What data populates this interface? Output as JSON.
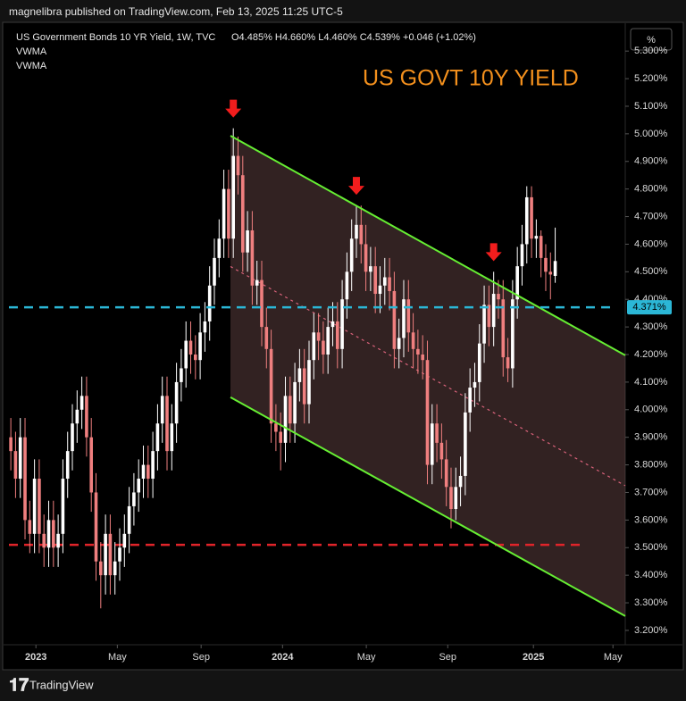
{
  "header": {
    "publisher": "magnelibra published on TradingView.com, Feb 13, 2025 11:25 UTC-5",
    "symbol": "US Government Bonds 10 YR Yield, 1W, TVC",
    "ohlc_text": "O4.485% H4.660% L4.460% C4.539% +0.046 (+1.02%)",
    "indicators": [
      "VWMA",
      "VWMA"
    ],
    "scale_button": "%"
  },
  "footer": {
    "brand": "TradingView"
  },
  "chart_data": {
    "type": "candlestick",
    "title": "US GOVT 10Y YIELD",
    "up_color": "#ffffff",
    "down_color": "#ef7f7f",
    "xlim": [
      -0.4,
      129.8
    ],
    "xticks": [
      {
        "value": 5.3,
        "label": "2023"
      },
      {
        "value": 22.5,
        "label": "May"
      },
      {
        "value": 40.2,
        "label": "Sep"
      },
      {
        "value": 57.4,
        "label": "2024"
      },
      {
        "value": 75.1,
        "label": "May"
      },
      {
        "value": 92.3,
        "label": "Sep"
      },
      {
        "value": 110.4,
        "label": "2025"
      },
      {
        "value": 127.2,
        "label": "May"
      }
    ],
    "ylim": [
      3.148,
      5.388
    ],
    "yticks": [
      {
        "value": 3.2,
        "label": "3.200%"
      },
      {
        "value": 3.3,
        "label": "3.300%"
      },
      {
        "value": 3.4,
        "label": "3.400%"
      },
      {
        "value": 3.5,
        "label": "3.500%"
      },
      {
        "value": 3.6,
        "label": "3.600%"
      },
      {
        "value": 3.7,
        "label": "3.700%"
      },
      {
        "value": 3.8,
        "label": "3.800%"
      },
      {
        "value": 3.9,
        "label": "3.900%"
      },
      {
        "value": 4.0,
        "label": "4.000%"
      },
      {
        "value": 4.1,
        "label": "4.100%"
      },
      {
        "value": 4.2,
        "label": "4.200%"
      },
      {
        "value": 4.3,
        "label": "4.300%"
      },
      {
        "value": 4.4,
        "label": "4.400%"
      },
      {
        "value": 4.5,
        "label": "4.500%"
      },
      {
        "value": 4.6,
        "label": "4.600%"
      },
      {
        "value": 4.7,
        "label": "4.700%"
      },
      {
        "value": 4.8,
        "label": "4.800%"
      },
      {
        "value": 4.9,
        "label": "4.900%"
      },
      {
        "value": 5.0,
        "label": "5.000%"
      },
      {
        "value": 5.1,
        "label": "5.100%"
      },
      {
        "value": 5.2,
        "label": "5.200%"
      },
      {
        "value": 5.3,
        "label": "5.300%"
      }
    ],
    "ohlc": [
      [
        3.9,
        3.97,
        3.78,
        3.85
      ],
      [
        3.85,
        3.92,
        3.68,
        3.75
      ],
      [
        3.75,
        3.97,
        3.68,
        3.9
      ],
      [
        3.9,
        3.97,
        3.53,
        3.6
      ],
      [
        3.6,
        3.67,
        3.48,
        3.55
      ],
      [
        3.55,
        3.82,
        3.48,
        3.75
      ],
      [
        3.75,
        3.82,
        3.48,
        3.55
      ],
      [
        3.55,
        3.62,
        3.43,
        3.5
      ],
      [
        3.5,
        3.67,
        3.43,
        3.6
      ],
      [
        3.6,
        3.67,
        3.43,
        3.5
      ],
      [
        3.5,
        3.62,
        3.43,
        3.55
      ],
      [
        3.55,
        3.82,
        3.48,
        3.75
      ],
      [
        3.75,
        3.92,
        3.68,
        3.85
      ],
      [
        3.85,
        4.02,
        3.78,
        3.95
      ],
      [
        3.95,
        4.07,
        3.88,
        4.0
      ],
      [
        4.0,
        4.12,
        3.93,
        4.05
      ],
      [
        4.05,
        4.12,
        3.83,
        3.9
      ],
      [
        3.9,
        3.97,
        3.63,
        3.7
      ],
      [
        3.7,
        3.77,
        3.38,
        3.45
      ],
      [
        3.45,
        3.52,
        3.28,
        3.4
      ],
      [
        3.4,
        3.62,
        3.33,
        3.55
      ],
      [
        3.55,
        3.62,
        3.33,
        3.4
      ],
      [
        3.4,
        3.52,
        3.33,
        3.45
      ],
      [
        3.45,
        3.57,
        3.38,
        3.5
      ],
      [
        3.5,
        3.62,
        3.43,
        3.55
      ],
      [
        3.55,
        3.72,
        3.48,
        3.65
      ],
      [
        3.65,
        3.77,
        3.58,
        3.7
      ],
      [
        3.7,
        3.82,
        3.63,
        3.75
      ],
      [
        3.75,
        3.87,
        3.68,
        3.8
      ],
      [
        3.8,
        3.87,
        3.68,
        3.75
      ],
      [
        3.75,
        3.92,
        3.68,
        3.85
      ],
      [
        3.85,
        4.02,
        3.78,
        3.95
      ],
      [
        3.95,
        4.12,
        3.88,
        4.05
      ],
      [
        4.05,
        4.12,
        3.78,
        3.85
      ],
      [
        3.85,
        4.02,
        3.78,
        3.95
      ],
      [
        3.95,
        4.17,
        3.88,
        4.1
      ],
      [
        4.1,
        4.22,
        4.03,
        4.15
      ],
      [
        4.15,
        4.32,
        4.08,
        4.25
      ],
      [
        4.25,
        4.32,
        4.13,
        4.2
      ],
      [
        4.2,
        4.27,
        4.11,
        4.18
      ],
      [
        4.18,
        4.35,
        4.11,
        4.28
      ],
      [
        4.28,
        4.39,
        4.21,
        4.32
      ],
      [
        4.32,
        4.52,
        4.25,
        4.45
      ],
      [
        4.45,
        4.62,
        4.38,
        4.55
      ],
      [
        4.55,
        4.69,
        4.48,
        4.62
      ],
      [
        4.62,
        4.87,
        4.55,
        4.8
      ],
      [
        4.8,
        4.87,
        4.55,
        4.62
      ],
      [
        4.62,
        5.02,
        4.55,
        4.92
      ],
      [
        4.92,
        4.99,
        4.78,
        4.85
      ],
      [
        4.85,
        4.92,
        4.5,
        4.57
      ],
      [
        4.57,
        4.72,
        4.5,
        4.65
      ],
      [
        4.65,
        4.72,
        4.38,
        4.45
      ],
      [
        4.45,
        4.54,
        4.38,
        4.47
      ],
      [
        4.47,
        4.54,
        4.23,
        4.3
      ],
      [
        4.3,
        4.37,
        4.15,
        4.22
      ],
      [
        4.22,
        4.29,
        3.88,
        3.95
      ],
      [
        3.95,
        4.02,
        3.85,
        3.92
      ],
      [
        3.92,
        3.99,
        3.78,
        3.88
      ],
      [
        3.88,
        4.12,
        3.81,
        4.05
      ],
      [
        4.05,
        4.12,
        3.88,
        3.95
      ],
      [
        3.95,
        4.17,
        3.88,
        4.1
      ],
      [
        4.1,
        4.22,
        4.03,
        4.15
      ],
      [
        4.15,
        4.22,
        3.95,
        4.02
      ],
      [
        4.02,
        4.25,
        3.95,
        4.18
      ],
      [
        4.18,
        4.35,
        4.11,
        4.28
      ],
      [
        4.28,
        4.35,
        4.18,
        4.25
      ],
      [
        4.25,
        4.32,
        4.13,
        4.2
      ],
      [
        4.2,
        4.37,
        4.13,
        4.3
      ],
      [
        4.3,
        4.39,
        4.23,
        4.32
      ],
      [
        4.32,
        4.39,
        4.15,
        4.22
      ],
      [
        4.22,
        4.47,
        4.15,
        4.4
      ],
      [
        4.4,
        4.57,
        4.33,
        4.5
      ],
      [
        4.5,
        4.69,
        4.43,
        4.62
      ],
      [
        4.62,
        4.74,
        4.55,
        4.67
      ],
      [
        4.67,
        4.74,
        4.53,
        4.6
      ],
      [
        4.6,
        4.67,
        4.43,
        4.5
      ],
      [
        4.5,
        4.59,
        4.43,
        4.52
      ],
      [
        4.52,
        4.59,
        4.35,
        4.42
      ],
      [
        4.42,
        4.52,
        4.35,
        4.45
      ],
      [
        4.45,
        4.55,
        4.38,
        4.48
      ],
      [
        4.48,
        4.55,
        4.36,
        4.43
      ],
      [
        4.43,
        4.5,
        4.15,
        4.22
      ],
      [
        4.22,
        4.33,
        4.15,
        4.26
      ],
      [
        4.26,
        4.47,
        4.19,
        4.4
      ],
      [
        4.4,
        4.47,
        4.21,
        4.28
      ],
      [
        4.28,
        4.35,
        4.15,
        4.22
      ],
      [
        4.22,
        4.29,
        4.13,
        4.2
      ],
      [
        4.2,
        4.27,
        4.11,
        4.18
      ],
      [
        4.18,
        4.25,
        3.73,
        3.8
      ],
      [
        3.8,
        4.02,
        3.73,
        3.95
      ],
      [
        3.95,
        4.02,
        3.81,
        3.88
      ],
      [
        3.88,
        3.95,
        3.75,
        3.82
      ],
      [
        3.82,
        3.89,
        3.65,
        3.72
      ],
      [
        3.72,
        3.79,
        3.57,
        3.64
      ],
      [
        3.64,
        3.79,
        3.6,
        3.72
      ],
      [
        3.72,
        3.83,
        3.65,
        3.76
      ],
      [
        3.76,
        4.06,
        3.69,
        3.99
      ],
      [
        3.99,
        4.15,
        3.92,
        4.08
      ],
      [
        4.08,
        4.17,
        4.01,
        4.1
      ],
      [
        4.1,
        4.31,
        4.03,
        4.24
      ],
      [
        4.24,
        4.45,
        4.17,
        4.38
      ],
      [
        4.38,
        4.45,
        4.23,
        4.3
      ],
      [
        4.3,
        4.5,
        4.23,
        4.42
      ],
      [
        4.42,
        4.47,
        4.33,
        4.4
      ],
      [
        4.4,
        4.47,
        4.12,
        4.19
      ],
      [
        4.19,
        4.26,
        4.1,
        4.15
      ],
      [
        4.15,
        4.47,
        4.08,
        4.4
      ],
      [
        4.4,
        4.59,
        4.33,
        4.52
      ],
      [
        4.52,
        4.67,
        4.45,
        4.6
      ],
      [
        4.6,
        4.81,
        4.53,
        4.77
      ],
      [
        4.77,
        4.81,
        4.55,
        4.62
      ],
      [
        4.62,
        4.69,
        4.55,
        4.63
      ],
      [
        4.63,
        4.65,
        4.48,
        4.55
      ],
      [
        4.55,
        4.6,
        4.43,
        4.5
      ],
      [
        4.5,
        4.57,
        4.4,
        4.49
      ],
      [
        4.485,
        4.66,
        4.46,
        4.539
      ]
    ],
    "channel": {
      "x": [
        46.4,
        129.8
      ],
      "upper": [
        4.993,
        4.197
      ],
      "lower": [
        4.045,
        3.252
      ],
      "color": "#66ee33",
      "fill": "rgba(120,80,80,0.42)",
      "mid_color": "#d9627a"
    },
    "last_line": {
      "value": 4.371,
      "label": "4.371%",
      "color": "#2bb7d6"
    },
    "support": {
      "value": 3.51,
      "x": [
        -0.4,
        121
      ],
      "color": "#e0242a"
    },
    "markers": {
      "x": [
        47,
        73,
        102
      ],
      "color": "#f21d1d"
    }
  }
}
